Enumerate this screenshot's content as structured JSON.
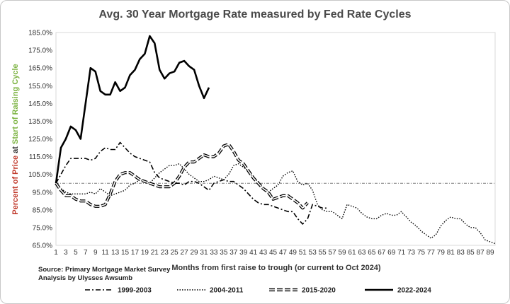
{
  "chart_data": {
    "type": "line",
    "title": "Avg. 30 Year Mortgage Rate measured by Fed Rate Cycles",
    "xlabel": "Months from first raise to trough (or current to Oct 2024)",
    "ylabel_parts": [
      {
        "text": "Percent of Price",
        "color": "#c0392b"
      },
      {
        "text": " at ",
        "color": "#333333"
      },
      {
        "text": "Start of Raising Cycle",
        "color": "#7cb342"
      }
    ],
    "xlim": [
      1,
      90
    ],
    "ylim": [
      65,
      185
    ],
    "y_ticks": [
      "65.0%",
      "75.0%",
      "85.0%",
      "95.0%",
      "105.0%",
      "115.0%",
      "125.0%",
      "135.0%",
      "145.0%",
      "155.0%",
      "165.0%",
      "175.0%",
      "185.0%"
    ],
    "x_ticks": [
      "1",
      "3",
      "5",
      "7",
      "9",
      "11",
      "13",
      "15",
      "17",
      "19",
      "21",
      "23",
      "25",
      "27",
      "29",
      "31",
      "33",
      "35",
      "37",
      "39",
      "41",
      "43",
      "45",
      "47",
      "49",
      "51",
      "53",
      "55",
      "57",
      "59",
      "61",
      "63",
      "65",
      "67",
      "69",
      "71",
      "73",
      "75",
      "77",
      "79",
      "81",
      "83",
      "85",
      "87",
      "89"
    ],
    "reference_line": 100,
    "source_lines": [
      "Source: Primary Mortgage Market Survey",
      "Analysis by Ulysses Awsumb"
    ],
    "series": [
      {
        "name": "1999-2003",
        "style": "dashdot",
        "values": [
          100,
          105,
          110,
          114,
          114,
          114,
          114,
          113,
          114,
          118,
          120,
          119,
          119,
          123,
          120,
          117,
          115,
          114,
          113,
          112,
          106,
          103,
          102,
          101,
          100,
          100,
          99,
          101,
          101,
          100,
          98,
          96,
          100,
          101,
          102,
          101,
          101,
          99,
          97,
          94,
          91,
          89,
          88,
          88,
          87,
          86,
          85,
          84,
          84,
          80,
          77,
          80,
          88,
          87,
          86,
          86
        ]
      },
      {
        "name": "2004-2011",
        "style": "dotted",
        "values": [
          100,
          97,
          95,
          94,
          94,
          94,
          94,
          95,
          94,
          97,
          95,
          93,
          94,
          95,
          96,
          99,
          100,
          102,
          101,
          100,
          103,
          106,
          108,
          110,
          110,
          111,
          108,
          105,
          103,
          101,
          101,
          102,
          104,
          103,
          102,
          105,
          110,
          111,
          109,
          107,
          103,
          101,
          97,
          95,
          97,
          99,
          104,
          106,
          107,
          101,
          99,
          100,
          96,
          88,
          85,
          84,
          84,
          82,
          80,
          88,
          87,
          86,
          83,
          81,
          80,
          80,
          82,
          83,
          82,
          82,
          84,
          81,
          78,
          76,
          73,
          71,
          69,
          71,
          76,
          79,
          81,
          80,
          80,
          77,
          75,
          75,
          72,
          68,
          67,
          66
        ]
      },
      {
        "name": "2015-2020",
        "style": "longdash",
        "values": [
          100,
          96,
          93,
          93,
          91,
          90,
          90,
          88,
          87,
          87,
          88,
          94,
          101,
          105,
          106,
          106,
          104,
          102,
          101,
          100,
          99,
          98,
          98,
          98,
          100,
          104,
          109,
          112,
          112,
          114,
          116,
          115,
          115,
          117,
          121,
          122,
          118,
          113,
          111,
          107,
          103,
          100,
          97,
          95,
          91,
          92,
          93,
          93,
          91,
          89,
          86,
          89
        ]
      },
      {
        "name": "2022-2024",
        "style": "solid",
        "values": [
          100,
          120,
          125,
          132,
          130,
          125,
          145,
          165,
          163,
          152,
          150,
          150,
          157,
          152,
          154,
          161,
          164,
          170,
          173,
          183,
          179,
          164,
          159,
          162,
          163,
          168,
          169,
          166,
          164,
          155,
          148,
          154
        ]
      }
    ]
  }
}
